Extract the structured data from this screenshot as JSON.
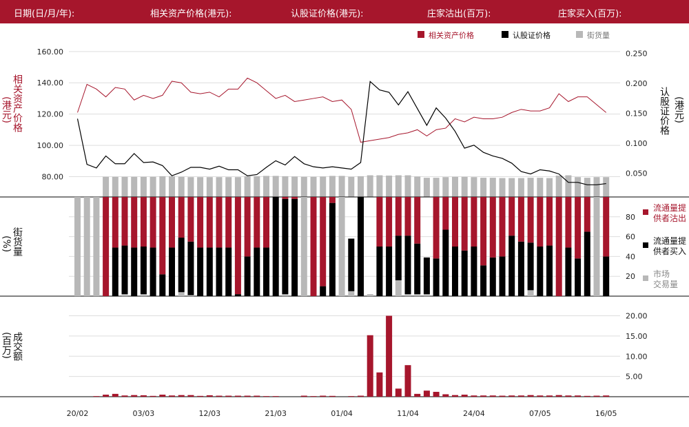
{
  "header": {
    "date": "日期(日/月/年):",
    "asset_price": "相关资产价格(港元):",
    "warrant_price": "认股证价格(港元):",
    "dealer_sell": "庄家沽出(百万):",
    "dealer_buy": "庄家买入(百万):"
  },
  "axis_labels": {
    "left_top": "相关资产价格",
    "left_top_unit": "港元",
    "right_top": "认股证价格",
    "right_top_unit": "港元",
    "middle": "街货量",
    "middle_unit": "%",
    "bottom": "成交额",
    "bottom_unit": "百万"
  },
  "legend": {
    "asset_price": "相关资产价格",
    "warrant_price": "认股证价格",
    "outstanding": "街货量",
    "lp_sell_1": "流通量提",
    "lp_sell_2": "供者沽出",
    "lp_buy_1": "流通量提",
    "lp_buy_2": "供者买入",
    "market_1": "市场",
    "market_2": "交易量"
  },
  "colors": {
    "red": "#a6162c",
    "black": "#000000",
    "gray": "#b8b8b8",
    "grid": "#dddddd"
  },
  "chart_data": {
    "type": "combo",
    "x_ticks": [
      "20/02",
      "03/03",
      "12/03",
      "21/03",
      "01/04",
      "11/04",
      "24/04",
      "07/05",
      "16/05"
    ],
    "x_tick_index": [
      0,
      7,
      14,
      21,
      28,
      35,
      42,
      49,
      56
    ],
    "n": 57,
    "top_left_ticks": [
      "160.00",
      "140.00",
      "120.00",
      "100.00",
      "80.00"
    ],
    "top_left_ylim": [
      67,
      163
    ],
    "top_right_ticks": [
      "0.250",
      "0.200",
      "0.150",
      "0.100",
      "0.050"
    ],
    "top_right_ylim": [
      0.0107,
      0.2607
    ],
    "middle_ticks": [
      "80",
      "60",
      "40",
      "20"
    ],
    "middle_ylim": [
      0,
      100
    ],
    "bottom_ticks": [
      "20.00",
      "15.00",
      "10.00",
      "5.00"
    ],
    "bottom_ylim": [
      0,
      20.6
    ],
    "asset_price": [
      121,
      139,
      136,
      131,
      137,
      136,
      129,
      132,
      130,
      132,
      141,
      140,
      134,
      133,
      134,
      131,
      136,
      136,
      143,
      140,
      135,
      130,
      132,
      128,
      129,
      130,
      131,
      128,
      129,
      123,
      102,
      103,
      104,
      105,
      107,
      108,
      110,
      106,
      110,
      111,
      117,
      115,
      118,
      117,
      117,
      118,
      121,
      123,
      122,
      122,
      124,
      133,
      128,
      131,
      131,
      126,
      121
    ],
    "warrant_price": [
      0.141,
      0.065,
      0.059,
      0.079,
      0.066,
      0.066,
      0.083,
      0.068,
      0.069,
      0.063,
      0.046,
      0.052,
      0.06,
      0.06,
      0.057,
      0.062,
      0.056,
      0.056,
      0.046,
      0.048,
      0.06,
      0.071,
      0.064,
      0.078,
      0.066,
      0.061,
      0.059,
      0.061,
      0.059,
      0.057,
      0.068,
      0.203,
      0.189,
      0.185,
      0.164,
      0.186,
      0.158,
      0.13,
      0.159,
      0.142,
      0.12,
      0.092,
      0.097,
      0.085,
      0.079,
      0.075,
      0.067,
      0.053,
      0.049,
      0.056,
      0.054,
      0.049,
      0.035,
      0.035,
      0.031,
      0.031,
      0.033
    ],
    "outstanding": [
      60,
      60,
      60,
      65,
      65,
      65,
      65,
      65,
      65,
      67,
      67,
      65,
      64,
      64,
      64,
      64,
      64,
      64,
      67,
      67,
      68,
      68,
      67,
      66,
      65,
      65,
      66,
      68,
      68,
      65,
      67,
      70,
      70,
      69,
      70,
      70,
      66,
      62,
      62,
      64,
      65,
      65,
      64,
      62,
      62,
      61,
      61,
      61,
      62,
      62,
      61,
      69,
      70,
      64,
      62,
      64,
      64
    ],
    "market_volume_bg": [
      100,
      100,
      100,
      100,
      100,
      100,
      100,
      100,
      100,
      100,
      100,
      100,
      100,
      100,
      100,
      100,
      100,
      100,
      100,
      100,
      100,
      100,
      100,
      100,
      100,
      100,
      100,
      100,
      100,
      100,
      100,
      100,
      100,
      100,
      100,
      100,
      100,
      100,
      100,
      100,
      100,
      100,
      100,
      100,
      100,
      100,
      100,
      100,
      100,
      100,
      100,
      100,
      100,
      100,
      100,
      100,
      100
    ],
    "lp_sell_pct": [
      0,
      0,
      0,
      100,
      51,
      51,
      51,
      50,
      51,
      78,
      51,
      41,
      45,
      51,
      51,
      51,
      51,
      98,
      60,
      51,
      51,
      0,
      2,
      2,
      0,
      100,
      90,
      6,
      0,
      0,
      0,
      0,
      50,
      50,
      46,
      21,
      47,
      0,
      62,
      33,
      50,
      54,
      50,
      69,
      61,
      60,
      39,
      45,
      52,
      50,
      49,
      100,
      51,
      62,
      35,
      100,
      60
    ],
    "lp_buy_pct": [
      0,
      0,
      0,
      0,
      49,
      49,
      49,
      48,
      49,
      22,
      49,
      55,
      54,
      49,
      49,
      49,
      49,
      2,
      40,
      49,
      49,
      100,
      96,
      98,
      0,
      0,
      10,
      94,
      0,
      53,
      100,
      0,
      50,
      50,
      45,
      59,
      51,
      37,
      38,
      67,
      50,
      46,
      50,
      31,
      39,
      40,
      61,
      55,
      48,
      50,
      51,
      0,
      49,
      38,
      65,
      0,
      40
    ],
    "market_pct": [
      100,
      100,
      100,
      0,
      0,
      2,
      0,
      2,
      0,
      0,
      0,
      4,
      1,
      0,
      0,
      0,
      0,
      0,
      0,
      0,
      0,
      0,
      2,
      0,
      100,
      0,
      0,
      0,
      100,
      5,
      0,
      2,
      0,
      0,
      16,
      2,
      2,
      2,
      0,
      0,
      0,
      0,
      0,
      0,
      0,
      0,
      0,
      0,
      6,
      0,
      0,
      0,
      0,
      0,
      0,
      100,
      0
    ],
    "turnover": [
      0,
      0,
      0.15,
      0.5,
      0.7,
      0.3,
      0.4,
      0.35,
      0.2,
      0.5,
      0.3,
      0.4,
      0.4,
      0.2,
      0.35,
      0.25,
      0.25,
      0.25,
      0.25,
      0.25,
      0.15,
      0.15,
      0,
      0,
      0.25,
      0.15,
      0.25,
      0.2,
      0,
      0.15,
      0.25,
      15.2,
      6,
      20,
      2,
      7.8,
      0.7,
      1.5,
      1.2,
      0.6,
      0.4,
      0.5,
      0.3,
      0.3,
      0.3,
      0.25,
      0.3,
      0.3,
      0.4,
      0.3,
      0.3,
      0.4,
      0.3,
      0.3,
      0.2,
      0.25,
      0.3
    ]
  }
}
